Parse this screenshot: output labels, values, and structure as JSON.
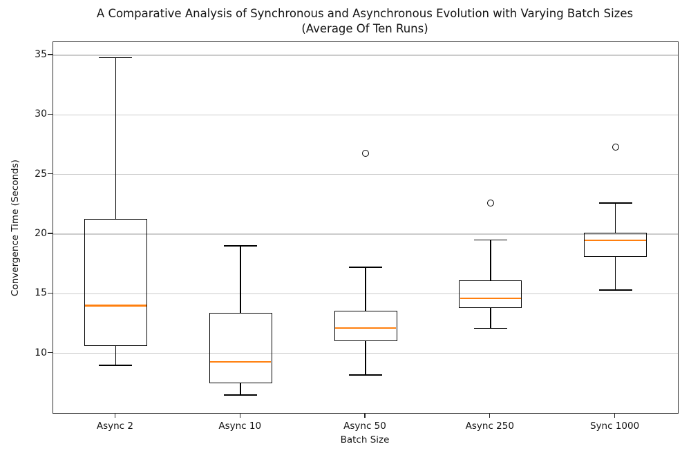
{
  "figure": {
    "title_line1": "A Comparative Analysis of Synchronous and Asynchronous Evolution with Varying Batch Sizes",
    "title_line2": "(Average Of Ten Runs)"
  },
  "chart_data": {
    "type": "boxplot",
    "title": "A Comparative Analysis of Synchronous and Asynchronous Evolution with Varying Batch Sizes (Average Of Ten Runs)",
    "xlabel": "Batch Size",
    "ylabel": "Convergence Time (Seconds)",
    "categories": [
      "Async 2",
      "Async 10",
      "Async 50",
      "Async 250",
      "Sync 1000"
    ],
    "boxes": [
      {
        "label": "Async 2",
        "whislo": 9.0,
        "q1": 10.6,
        "med": 14.0,
        "q3": 21.3,
        "whishi": 34.8,
        "fliers": []
      },
      {
        "label": "Async 10",
        "whislo": 6.5,
        "q1": 7.5,
        "med": 9.3,
        "q3": 13.4,
        "whishi": 19.0,
        "fliers": []
      },
      {
        "label": "Async 50",
        "whislo": 8.2,
        "q1": 11.0,
        "med": 12.1,
        "q3": 13.6,
        "whishi": 17.2,
        "fliers": [
          26.8
        ]
      },
      {
        "label": "Async 250",
        "whislo": 12.1,
        "q1": 13.8,
        "med": 14.6,
        "q3": 16.1,
        "whishi": 19.5,
        "fliers": [
          22.6
        ]
      },
      {
        "label": "Sync 1000",
        "whislo": 15.3,
        "q1": 18.1,
        "med": 19.5,
        "q3": 20.1,
        "whishi": 22.6,
        "fliers": [
          27.3
        ]
      }
    ],
    "yticks": [
      10,
      15,
      20,
      25,
      30,
      35
    ],
    "ylim": [
      5.0,
      36.1
    ],
    "grid": true,
    "legend": "none",
    "colors": {
      "median": "#ff7f0e",
      "box": "#000000",
      "grid": "#cbcbcb",
      "spine": "#2b2b2b",
      "background": "#ffffff"
    }
  }
}
